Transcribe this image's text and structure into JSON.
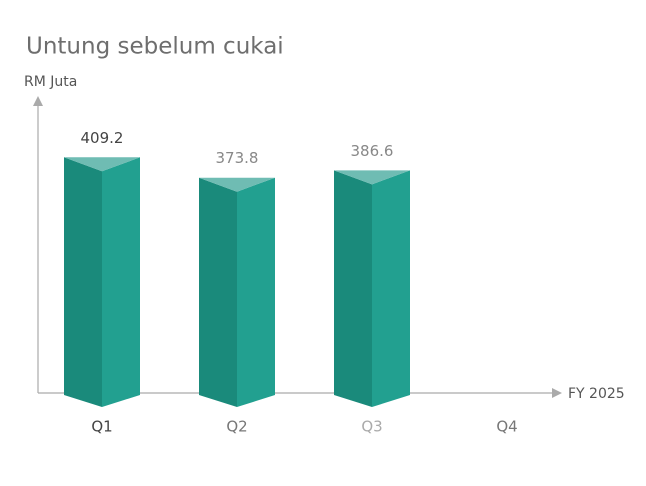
{
  "chart_data": {
    "type": "prism-bar",
    "title": "Untung sebelum cukai",
    "y_label": "RM Juta",
    "x_label": "FY 2025",
    "categories": [
      "Q1",
      "Q2",
      "Q3",
      "Q4"
    ],
    "values": [
      409.2,
      373.8,
      386.6,
      null
    ],
    "color": "#22a090",
    "ylim": [
      0,
      500
    ]
  }
}
